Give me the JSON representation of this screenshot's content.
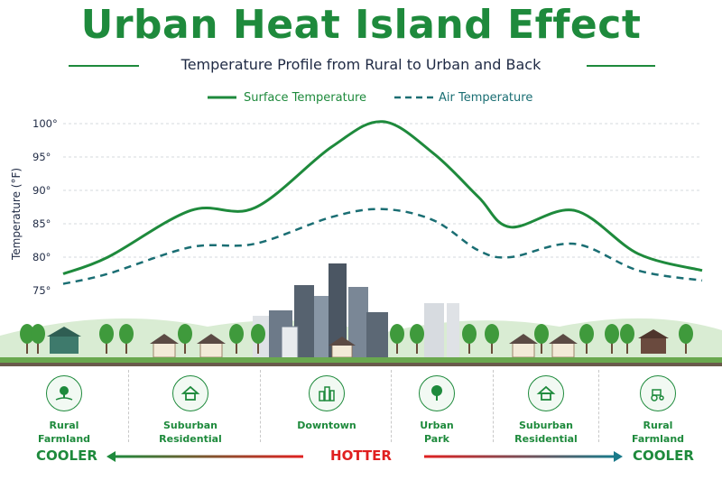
{
  "chart_data": {
    "type": "line",
    "title": "Urban Heat Island Effect",
    "subtitle": "Temperature Profile from Rural to Urban and Back",
    "ylabel": "Temperature (°F)",
    "ylim": [
      75,
      100
    ],
    "yticks": [
      "100°",
      "95°",
      "90°",
      "85°",
      "80°",
      "75°"
    ],
    "grid": true,
    "legend_position": "top-center",
    "series": [
      {
        "name": "Surface Temperature",
        "style": "solid",
        "color": "#1e8a3c",
        "x": [
          0,
          0.07,
          0.2,
          0.3,
          0.42,
          0.5,
          0.58,
          0.65,
          0.7,
          0.8,
          0.9,
          1.0
        ],
        "values": [
          77.5,
          80,
          87,
          87.4,
          96.5,
          100.3,
          95.5,
          89,
          84.5,
          87,
          80.5,
          78
        ]
      },
      {
        "name": "Air Temperature",
        "style": "dashed",
        "color": "#1a6e73",
        "x": [
          0,
          0.07,
          0.2,
          0.3,
          0.42,
          0.5,
          0.58,
          0.65,
          0.7,
          0.8,
          0.9,
          1.0
        ],
        "values": [
          76,
          77.5,
          81.5,
          82,
          86,
          87.2,
          85.5,
          81,
          80,
          82,
          78,
          76.5
        ]
      }
    ]
  },
  "zones": [
    {
      "label": "Rural\nFarmland",
      "icon": "farm-icon"
    },
    {
      "label": "Suburban\nResidential",
      "icon": "house-icon"
    },
    {
      "label": "Downtown",
      "icon": "buildings-icon"
    },
    {
      "label": "Urban\nPark",
      "icon": "tree-icon"
    },
    {
      "label": "Suburban\nResidential",
      "icon": "house-icon"
    },
    {
      "label": "Rural\nFarmland",
      "icon": "tractor-icon"
    }
  ],
  "scale": {
    "left": "COOLER",
    "center": "HOTTER",
    "right": "COOLER"
  },
  "colors": {
    "green": "#1e8a3c",
    "teal": "#1a6e73",
    "red": "#e02020",
    "navy": "#1f2a44"
  }
}
